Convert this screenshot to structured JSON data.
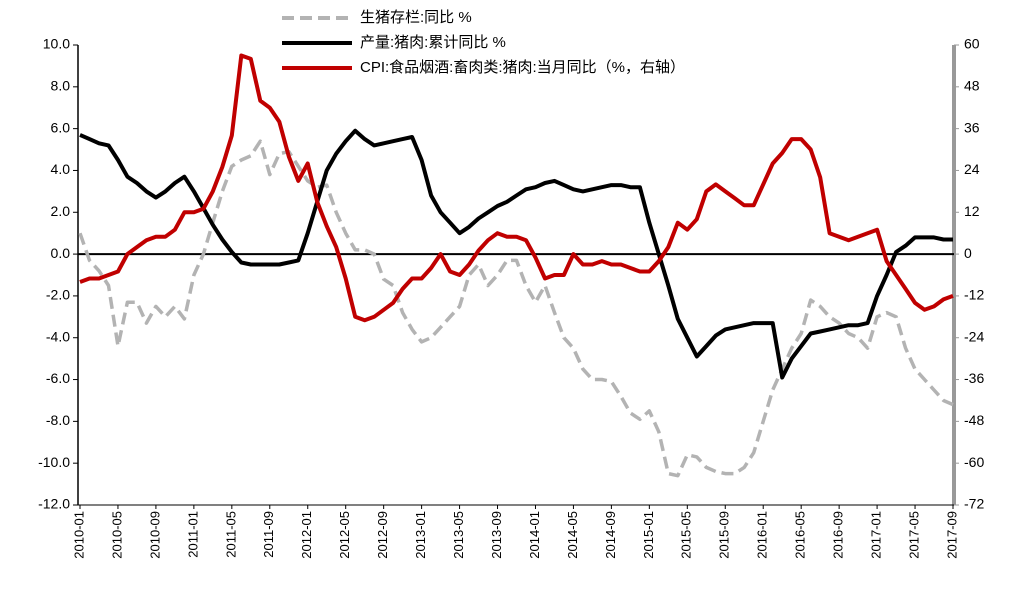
{
  "chart_data": {
    "type": "line",
    "categories": [
      "2010-01",
      null,
      null,
      null,
      "2010-05",
      null,
      null,
      null,
      "2010-09",
      null,
      null,
      null,
      "2011-01",
      null,
      null,
      null,
      "2011-05",
      null,
      null,
      null,
      "2011-09",
      null,
      null,
      null,
      "2012-01",
      null,
      null,
      null,
      "2012-05",
      null,
      null,
      null,
      "2012-09",
      null,
      null,
      null,
      "2013-01",
      null,
      null,
      null,
      "2013-05",
      null,
      null,
      null,
      "2013-09",
      null,
      null,
      null,
      "2014-01",
      null,
      null,
      null,
      "2014-05",
      null,
      null,
      null,
      "2014-09",
      null,
      null,
      null,
      "2015-01",
      null,
      null,
      null,
      "2015-05",
      null,
      null,
      null,
      "2015-09",
      null,
      null,
      null,
      "2016-01",
      null,
      null,
      null,
      "2016-05",
      null,
      null,
      null,
      "2016-09",
      null,
      null,
      null,
      "2017-01",
      null,
      null,
      null,
      "2017-05",
      null,
      null,
      null,
      "2017-09"
    ],
    "series": [
      {
        "name": "生猪存栏:同比 %",
        "color": "#b3b3b3",
        "dashed": true,
        "axis": "y",
        "values": [
          1.0,
          -0.3,
          -0.8,
          -1.5,
          -4.4,
          -2.3,
          -2.3,
          -3.3,
          -2.5,
          -3.0,
          -2.5,
          -3.1,
          -1.0,
          0.0,
          1.5,
          3.0,
          4.2,
          4.5,
          4.7,
          5.4,
          3.8,
          4.8,
          4.9,
          4.2,
          3.5,
          3.2,
          3.3,
          2.0,
          1.0,
          0.2,
          0.2,
          0.0,
          -1.2,
          -1.5,
          -2.8,
          -3.6,
          -4.2,
          -4.0,
          -3.5,
          -3.0,
          -2.5,
          -1.0,
          -0.5,
          -1.5,
          -1.0,
          -0.3,
          -0.3,
          -1.5,
          -2.3,
          -1.5,
          -2.8,
          -4.0,
          -4.5,
          -5.5,
          -6.0,
          -6.0,
          -6.1,
          -6.8,
          -7.6,
          -7.9,
          -7.5,
          -8.5,
          -10.5,
          -10.6,
          -9.6,
          -9.7,
          -10.2,
          -10.4,
          -10.5,
          -10.5,
          -10.2,
          -9.5,
          -8.0,
          -6.5,
          -5.5,
          -4.5,
          -3.8,
          -2.2,
          -2.5,
          -3.0,
          -3.3,
          -3.8,
          -4.0,
          -4.5,
          -3.0,
          -2.8,
          -3.0,
          -4.5,
          -5.5,
          -6.0,
          -6.5,
          -7.0,
          -7.2
        ]
      },
      {
        "name": "产量:猪肉:累计同比 %",
        "color": "#000000",
        "dashed": false,
        "axis": "y",
        "values": [
          5.7,
          5.5,
          5.3,
          5.2,
          4.5,
          3.7,
          3.4,
          3.0,
          2.7,
          3.0,
          3.4,
          3.7,
          3.0,
          2.2,
          1.4,
          0.7,
          0.1,
          -0.4,
          -0.5,
          -0.5,
          -0.5,
          -0.5,
          -0.4,
          -0.3,
          1.0,
          2.5,
          4.0,
          4.8,
          5.4,
          5.9,
          5.5,
          5.2,
          5.3,
          5.4,
          5.5,
          5.6,
          4.5,
          2.8,
          2.0,
          1.5,
          1.0,
          1.3,
          1.7,
          2.0,
          2.3,
          2.5,
          2.8,
          3.1,
          3.2,
          3.4,
          3.5,
          3.3,
          3.1,
          3.0,
          3.1,
          3.2,
          3.3,
          3.3,
          3.2,
          3.2,
          1.5,
          0.0,
          -1.5,
          -3.1,
          -4.0,
          -4.9,
          -4.4,
          -3.9,
          -3.6,
          -3.5,
          -3.4,
          -3.3,
          -3.3,
          -3.3,
          -5.9,
          -5.0,
          -4.4,
          -3.8,
          -3.7,
          -3.6,
          -3.5,
          -3.4,
          -3.4,
          -3.3,
          -2.0,
          -1.0,
          0.1,
          0.4,
          0.8,
          0.8,
          0.8,
          0.7,
          0.7
        ]
      },
      {
        "name": "CPI:食品烟酒:畜肉类:猪肉:当月同比（%，右轴）",
        "color": "#c00000",
        "dashed": false,
        "axis": "y2",
        "values": [
          -8,
          -7,
          -7,
          -6,
          -5,
          0,
          2,
          4,
          5,
          5,
          7,
          12,
          12,
          13,
          18,
          25,
          34,
          57,
          56,
          44,
          42,
          38,
          28,
          21,
          26,
          15,
          8,
          2,
          -7,
          -18,
          -19,
          -18,
          -16,
          -14,
          -10,
          -7,
          -7,
          -4,
          0,
          -5,
          -6,
          -3,
          1,
          4,
          6,
          5,
          5,
          4,
          -1,
          -7,
          -6,
          -6,
          0,
          -3,
          -3,
          -2,
          -3,
          -3,
          -4,
          -5,
          -5,
          -2,
          2,
          9,
          7,
          10,
          18,
          20,
          18,
          16,
          14,
          14,
          20,
          26,
          29,
          33,
          33,
          30,
          22,
          6,
          5,
          4,
          5,
          6,
          7,
          -2,
          -6,
          -10,
          -14,
          -16,
          -15,
          -13,
          -12
        ]
      }
    ],
    "ylim": [
      -12,
      10
    ],
    "yticks": [
      {
        "value": 10,
        "label": "10.0"
      },
      {
        "value": 8,
        "label": "8.0"
      },
      {
        "value": 6,
        "label": "6.0"
      },
      {
        "value": 4,
        "label": "4.0"
      },
      {
        "value": 2,
        "label": "2.0"
      },
      {
        "value": 0,
        "label": "0.0"
      },
      {
        "value": -2,
        "label": "-2.0"
      },
      {
        "value": -4,
        "label": "-4.0"
      },
      {
        "value": -6,
        "label": "-6.0"
      },
      {
        "value": -8,
        "label": "-8.0"
      },
      {
        "value": -10,
        "label": "-10.0"
      },
      {
        "value": -12,
        "label": "-12.0"
      }
    ],
    "y2lim": [
      -72,
      60
    ],
    "y2ticks": [
      60,
      48,
      36,
      24,
      12,
      0,
      -12,
      -24,
      -36,
      -48,
      -60,
      -72
    ],
    "legend": "top"
  }
}
